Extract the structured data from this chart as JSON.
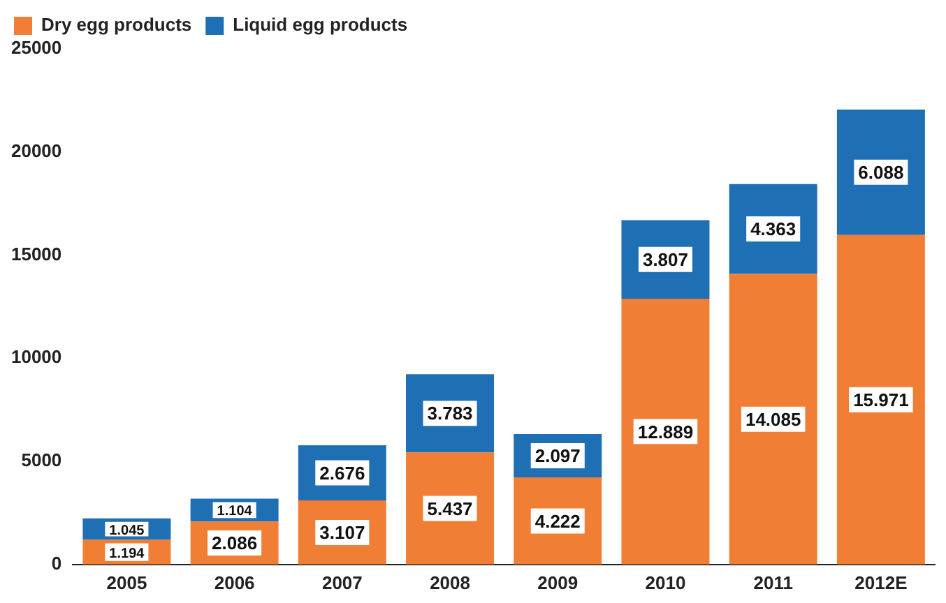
{
  "chart_data": {
    "type": "bar",
    "stacked": true,
    "categories": [
      "2005",
      "2006",
      "2007",
      "2008",
      "2009",
      "2010",
      "2011",
      "2012E"
    ],
    "series": [
      {
        "name": "Dry egg products",
        "color": "#f07f35",
        "values": [
          1194,
          2086,
          3107,
          5437,
          4222,
          12889,
          14085,
          15971
        ],
        "value_labels": [
          "1.194",
          "2.086",
          "3.107",
          "5.437",
          "4.222",
          "12.889",
          "14.085",
          "15.971"
        ]
      },
      {
        "name": "Liquid egg products",
        "color": "#1f6fb5",
        "values": [
          1045,
          1104,
          2676,
          3783,
          2097,
          3807,
          4363,
          6088
        ],
        "value_labels": [
          "1.045",
          "1.104",
          "2.676",
          "3.783",
          "2.097",
          "3.807",
          "4.363",
          "6.088"
        ]
      }
    ],
    "ylim": [
      0,
      25000
    ],
    "yticks": [
      0,
      5000,
      10000,
      15000,
      20000,
      25000
    ],
    "grid": false,
    "legend": "top left"
  }
}
